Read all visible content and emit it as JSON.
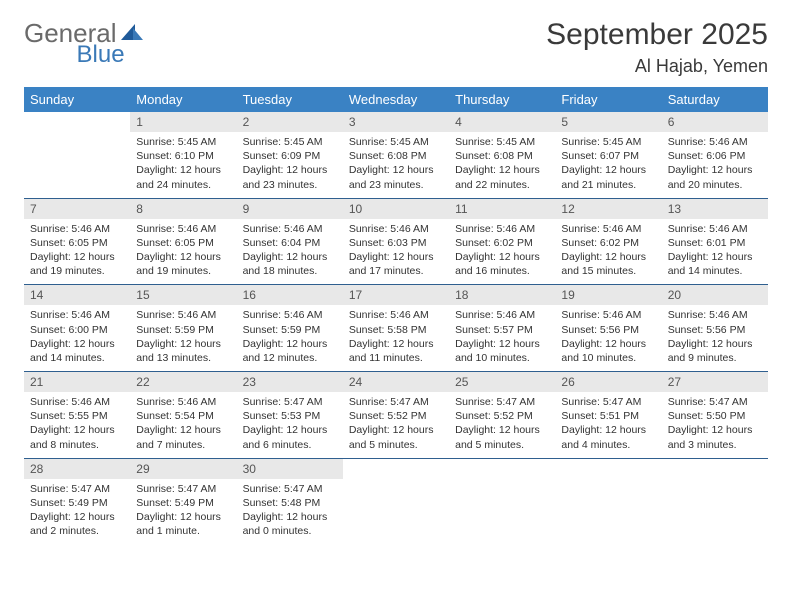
{
  "brand": {
    "part1": "General",
    "part2": "Blue"
  },
  "title": "September 2025",
  "location": "Al Hajab, Yemen",
  "colors": {
    "header_bg": "#3a82c4",
    "header_fg": "#ffffff",
    "row_divider": "#2f5f8f",
    "daynum_bg": "#e8e8e8",
    "text": "#333333",
    "logo_gray": "#6a6a6a",
    "logo_blue": "#3a79b7"
  },
  "weekdays": [
    "Sunday",
    "Monday",
    "Tuesday",
    "Wednesday",
    "Thursday",
    "Friday",
    "Saturday"
  ],
  "weeks": [
    [
      null,
      {
        "n": "1",
        "sr": "5:45 AM",
        "ss": "6:10 PM",
        "dl": "12 hours and 24 minutes."
      },
      {
        "n": "2",
        "sr": "5:45 AM",
        "ss": "6:09 PM",
        "dl": "12 hours and 23 minutes."
      },
      {
        "n": "3",
        "sr": "5:45 AM",
        "ss": "6:08 PM",
        "dl": "12 hours and 23 minutes."
      },
      {
        "n": "4",
        "sr": "5:45 AM",
        "ss": "6:08 PM",
        "dl": "12 hours and 22 minutes."
      },
      {
        "n": "5",
        "sr": "5:45 AM",
        "ss": "6:07 PM",
        "dl": "12 hours and 21 minutes."
      },
      {
        "n": "6",
        "sr": "5:46 AM",
        "ss": "6:06 PM",
        "dl": "12 hours and 20 minutes."
      }
    ],
    [
      {
        "n": "7",
        "sr": "5:46 AM",
        "ss": "6:05 PM",
        "dl": "12 hours and 19 minutes."
      },
      {
        "n": "8",
        "sr": "5:46 AM",
        "ss": "6:05 PM",
        "dl": "12 hours and 19 minutes."
      },
      {
        "n": "9",
        "sr": "5:46 AM",
        "ss": "6:04 PM",
        "dl": "12 hours and 18 minutes."
      },
      {
        "n": "10",
        "sr": "5:46 AM",
        "ss": "6:03 PM",
        "dl": "12 hours and 17 minutes."
      },
      {
        "n": "11",
        "sr": "5:46 AM",
        "ss": "6:02 PM",
        "dl": "12 hours and 16 minutes."
      },
      {
        "n": "12",
        "sr": "5:46 AM",
        "ss": "6:02 PM",
        "dl": "12 hours and 15 minutes."
      },
      {
        "n": "13",
        "sr": "5:46 AM",
        "ss": "6:01 PM",
        "dl": "12 hours and 14 minutes."
      }
    ],
    [
      {
        "n": "14",
        "sr": "5:46 AM",
        "ss": "6:00 PM",
        "dl": "12 hours and 14 minutes."
      },
      {
        "n": "15",
        "sr": "5:46 AM",
        "ss": "5:59 PM",
        "dl": "12 hours and 13 minutes."
      },
      {
        "n": "16",
        "sr": "5:46 AM",
        "ss": "5:59 PM",
        "dl": "12 hours and 12 minutes."
      },
      {
        "n": "17",
        "sr": "5:46 AM",
        "ss": "5:58 PM",
        "dl": "12 hours and 11 minutes."
      },
      {
        "n": "18",
        "sr": "5:46 AM",
        "ss": "5:57 PM",
        "dl": "12 hours and 10 minutes."
      },
      {
        "n": "19",
        "sr": "5:46 AM",
        "ss": "5:56 PM",
        "dl": "12 hours and 10 minutes."
      },
      {
        "n": "20",
        "sr": "5:46 AM",
        "ss": "5:56 PM",
        "dl": "12 hours and 9 minutes."
      }
    ],
    [
      {
        "n": "21",
        "sr": "5:46 AM",
        "ss": "5:55 PM",
        "dl": "12 hours and 8 minutes."
      },
      {
        "n": "22",
        "sr": "5:46 AM",
        "ss": "5:54 PM",
        "dl": "12 hours and 7 minutes."
      },
      {
        "n": "23",
        "sr": "5:47 AM",
        "ss": "5:53 PM",
        "dl": "12 hours and 6 minutes."
      },
      {
        "n": "24",
        "sr": "5:47 AM",
        "ss": "5:52 PM",
        "dl": "12 hours and 5 minutes."
      },
      {
        "n": "25",
        "sr": "5:47 AM",
        "ss": "5:52 PM",
        "dl": "12 hours and 5 minutes."
      },
      {
        "n": "26",
        "sr": "5:47 AM",
        "ss": "5:51 PM",
        "dl": "12 hours and 4 minutes."
      },
      {
        "n": "27",
        "sr": "5:47 AM",
        "ss": "5:50 PM",
        "dl": "12 hours and 3 minutes."
      }
    ],
    [
      {
        "n": "28",
        "sr": "5:47 AM",
        "ss": "5:49 PM",
        "dl": "12 hours and 2 minutes."
      },
      {
        "n": "29",
        "sr": "5:47 AM",
        "ss": "5:49 PM",
        "dl": "12 hours and 1 minute."
      },
      {
        "n": "30",
        "sr": "5:47 AM",
        "ss": "5:48 PM",
        "dl": "12 hours and 0 minutes."
      },
      null,
      null,
      null,
      null
    ]
  ],
  "labels": {
    "sunrise": "Sunrise:",
    "sunset": "Sunset:",
    "daylight": "Daylight:"
  }
}
